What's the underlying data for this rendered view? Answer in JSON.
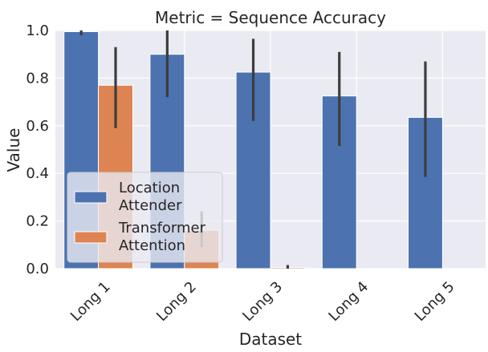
{
  "chart_data": {
    "type": "bar",
    "title": "Metric = Sequence Accuracy",
    "xlabel": "Dataset",
    "ylabel": "Value",
    "ylim": [
      0.0,
      1.0
    ],
    "yticks": [
      "0.0",
      "0.2",
      "0.4",
      "0.6",
      "0.8",
      "1.0"
    ],
    "categories": [
      "Long 1",
      "Long 2",
      "Long 3",
      "Long 4",
      "Long 5"
    ],
    "grid": true,
    "legend_position": "lower-left",
    "series": [
      {
        "name": "Location Attender",
        "color": "#4c72b0",
        "values": [
          0.995,
          0.9,
          0.825,
          0.725,
          0.635
        ],
        "error_low": [
          0.98,
          0.72,
          0.62,
          0.515,
          0.385
        ],
        "error_high": [
          1.0,
          1.0,
          0.965,
          0.91,
          0.87
        ]
      },
      {
        "name": "Transformer Attention",
        "color": "#dd8452",
        "values": [
          0.77,
          0.16,
          0.005,
          0.0,
          0.0
        ],
        "error_low": [
          0.59,
          0.09,
          0.0,
          0.0,
          0.0
        ],
        "error_high": [
          0.93,
          0.24,
          0.015,
          0.0,
          0.0
        ]
      }
    ],
    "legend_labels": [
      [
        "Location",
        "Attender"
      ],
      [
        "Transformer",
        "Attention"
      ]
    ]
  }
}
